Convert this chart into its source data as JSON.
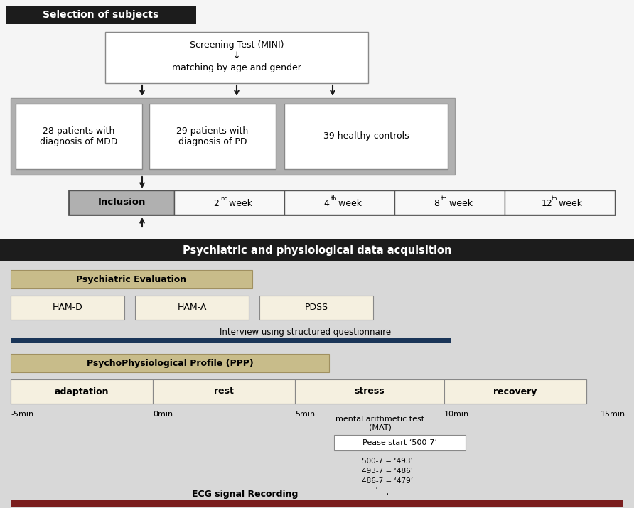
{
  "overall_bg": "#e8e8e8",
  "section1_header_bg": "#1c1c1c",
  "section1_header_text": "Selection of subjects",
  "section1_header_text_color": "#ffffff",
  "screening_box_text1": "Screening Test (MINI)",
  "screening_box_text2": "↓",
  "screening_box_text3": "matching by age and gender",
  "group_bg": "#a8a8a8",
  "group_boxes": [
    "28 patients with\ndiagnosis of MDD",
    "29 patients with\ndiagnosis of PD",
    "39 healthy controls"
  ],
  "timeline_cells": [
    "Inclusion",
    "2",
    "4",
    "8",
    "12"
  ],
  "timeline_superscripts": [
    "",
    "nd",
    "th",
    "th",
    "th"
  ],
  "timeline_cell_bg": [
    "#b0b0b0",
    "#f8f8f8",
    "#f8f8f8",
    "#f8f8f8",
    "#f8f8f8"
  ],
  "section2_header_bg": "#1c1c1c",
  "section2_header_text": "Psychiatric and physiological data acquisition",
  "section2_header_text_color": "#ffffff",
  "section2_bg": "#d8d8d8",
  "psych_eval_bg": "#c8bc8a",
  "psych_eval_text": "Psychiatric Evaluation",
  "eval_boxes": [
    "HAM-D",
    "HAM-A",
    "PDSS"
  ],
  "eval_box_bg": "#f5f0e0",
  "interview_text": "Interview using structured questionnaire",
  "interview_bar_color": "#1a3558",
  "ppp_bg": "#c8bc8a",
  "ppp_text": "PsychoPhysiological Profile (PPP)",
  "phase_boxes": [
    "adaptation",
    "rest",
    "stress",
    "recovery"
  ],
  "phase_box_bg": "#f5f0e0",
  "time_labels": [
    "-5min",
    "0min",
    "5min",
    "10min",
    "15min"
  ],
  "mat_text1": "mental arithmetic test",
  "mat_text2": "(MAT)",
  "mat_box_text": "Pease start ‘500-7’",
  "calc_lines": [
    "500-7 = ‘493’",
    "493-7 = ‘486’",
    "486-7 = ‘479’"
  ],
  "ecg_text": "ECG signal Recording",
  "ecg_bar_color": "#7a1e1e",
  "arrow_color": "#1a1a1a"
}
